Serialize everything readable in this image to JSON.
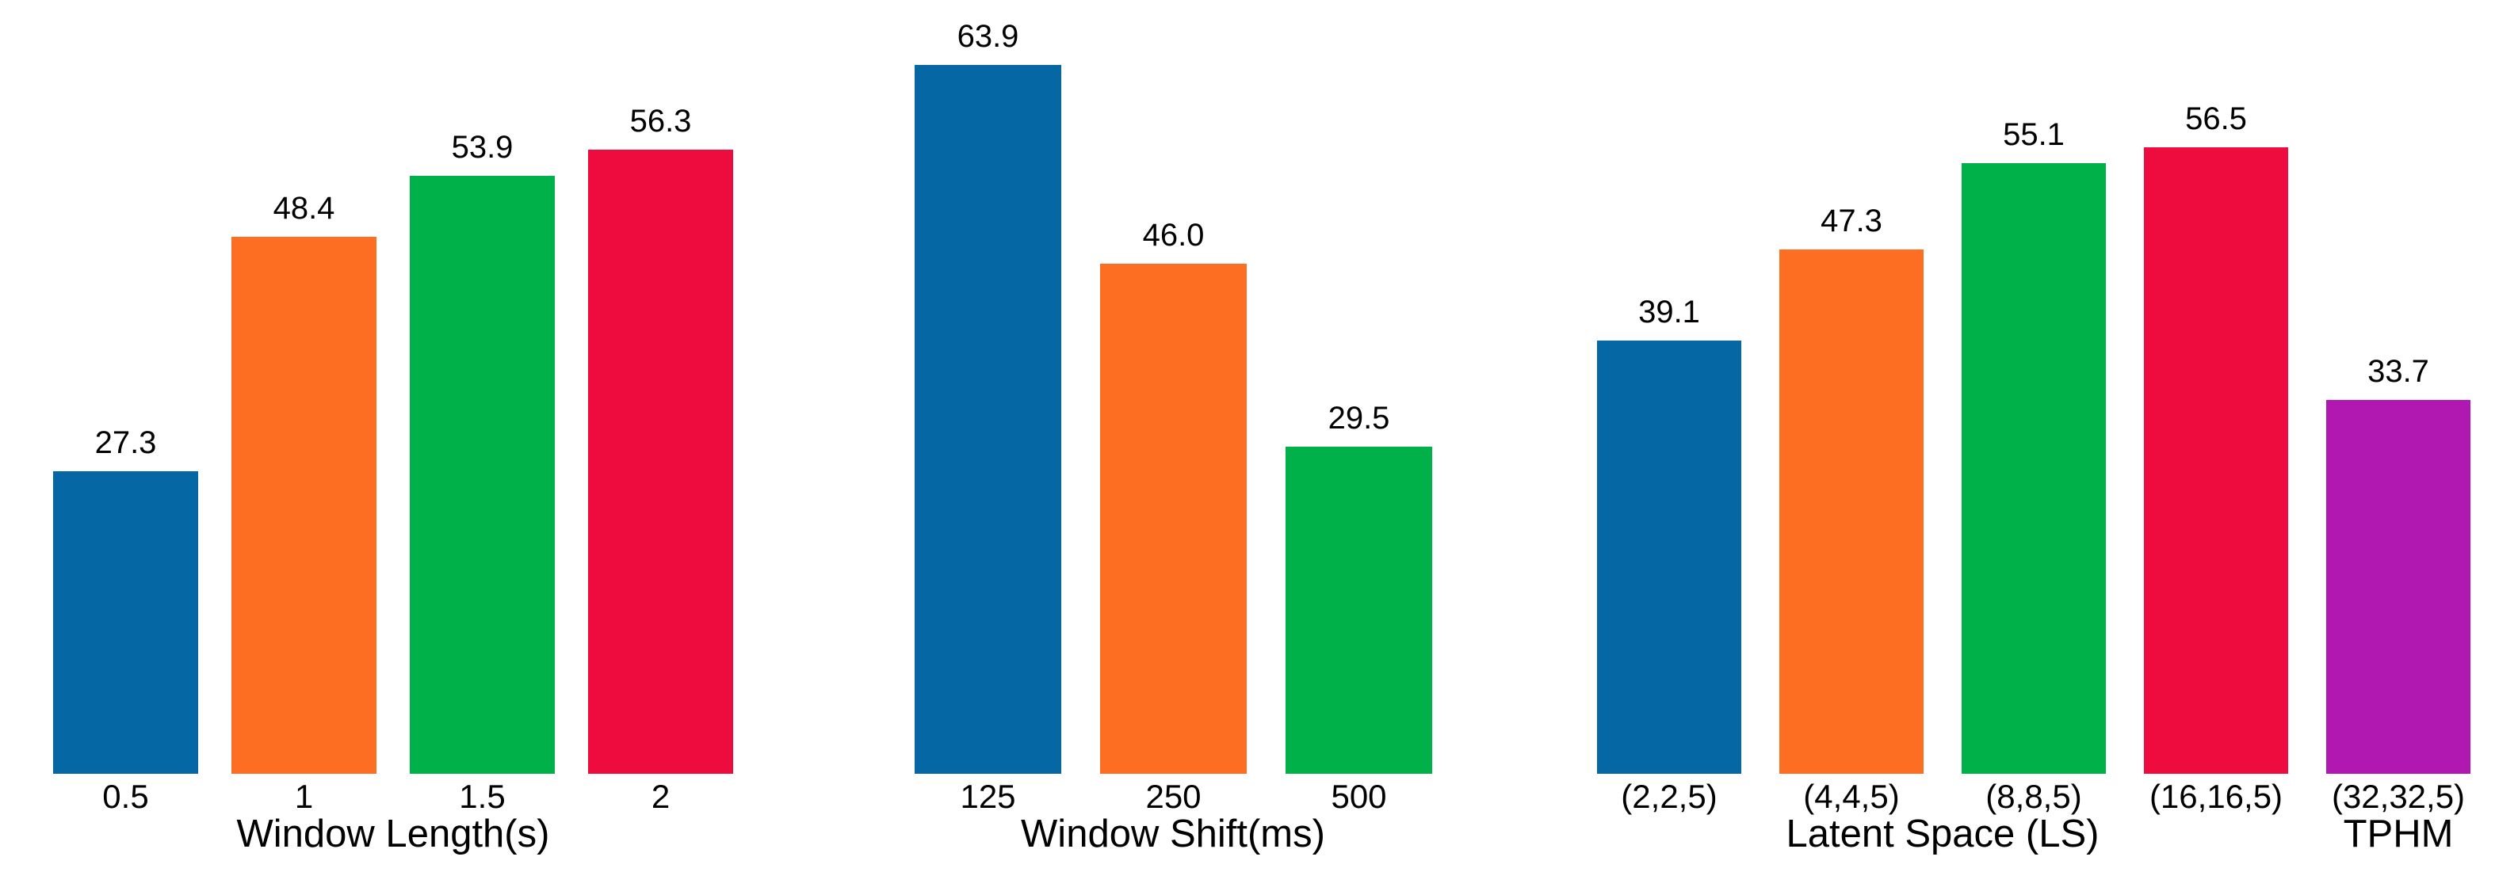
{
  "figure": {
    "background": "#ffffff",
    "text_color": "#000000",
    "description": "Three bar-chart panels with value labels above bars and no visible y-axis"
  },
  "palette": {
    "blue": "#0568a4",
    "orange": "#fd6d22",
    "green": "#00b14a",
    "red": "#ee0c3f",
    "purple": "#b118b1"
  },
  "chart_data": [
    {
      "type": "bar",
      "title": "",
      "xlabel": "Window Length(s)",
      "ylabel": "",
      "categories": [
        "0.5",
        "1",
        "1.5",
        "2"
      ],
      "values": [
        27.3,
        48.4,
        53.9,
        56.3
      ],
      "value_labels": [
        "27.3",
        "48.4",
        "53.9",
        "56.3"
      ],
      "colors": [
        "#0568a4",
        "#fd6d22",
        "#00b14a",
        "#ee0c3f"
      ],
      "ylim": [
        0,
        67
      ],
      "grid": false,
      "axes_hidden": true,
      "legend": "none"
    },
    {
      "type": "bar",
      "title": "",
      "xlabel": "Window Shift(ms)",
      "ylabel": "",
      "categories": [
        "125",
        "250",
        "500"
      ],
      "values": [
        63.9,
        46.0,
        29.5
      ],
      "value_labels": [
        "63.9",
        "46.0",
        "29.5"
      ],
      "colors": [
        "#0568a4",
        "#fd6d22",
        "#00b14a"
      ],
      "ylim": [
        0,
        67
      ],
      "grid": false,
      "axes_hidden": true,
      "legend": "none"
    },
    {
      "type": "bar",
      "title": "",
      "xlabel": "Latent Space (LS)",
      "xlabel2": "TPHM",
      "ylabel": "",
      "categories": [
        "(2,2,5)",
        "(4,4,5)",
        "(8,8,5)",
        "(16,16,5)",
        "(32,32,5)"
      ],
      "values": [
        39.1,
        47.3,
        55.1,
        56.5,
        33.7
      ],
      "value_labels": [
        "39.1",
        "47.3",
        "55.1",
        "56.5",
        "33.7"
      ],
      "colors": [
        "#0568a4",
        "#fd6d22",
        "#00b14a",
        "#ee0c3f",
        "#b118b1"
      ],
      "ylim": [
        0,
        67
      ],
      "grid": false,
      "axes_hidden": true,
      "legend": "none"
    }
  ]
}
